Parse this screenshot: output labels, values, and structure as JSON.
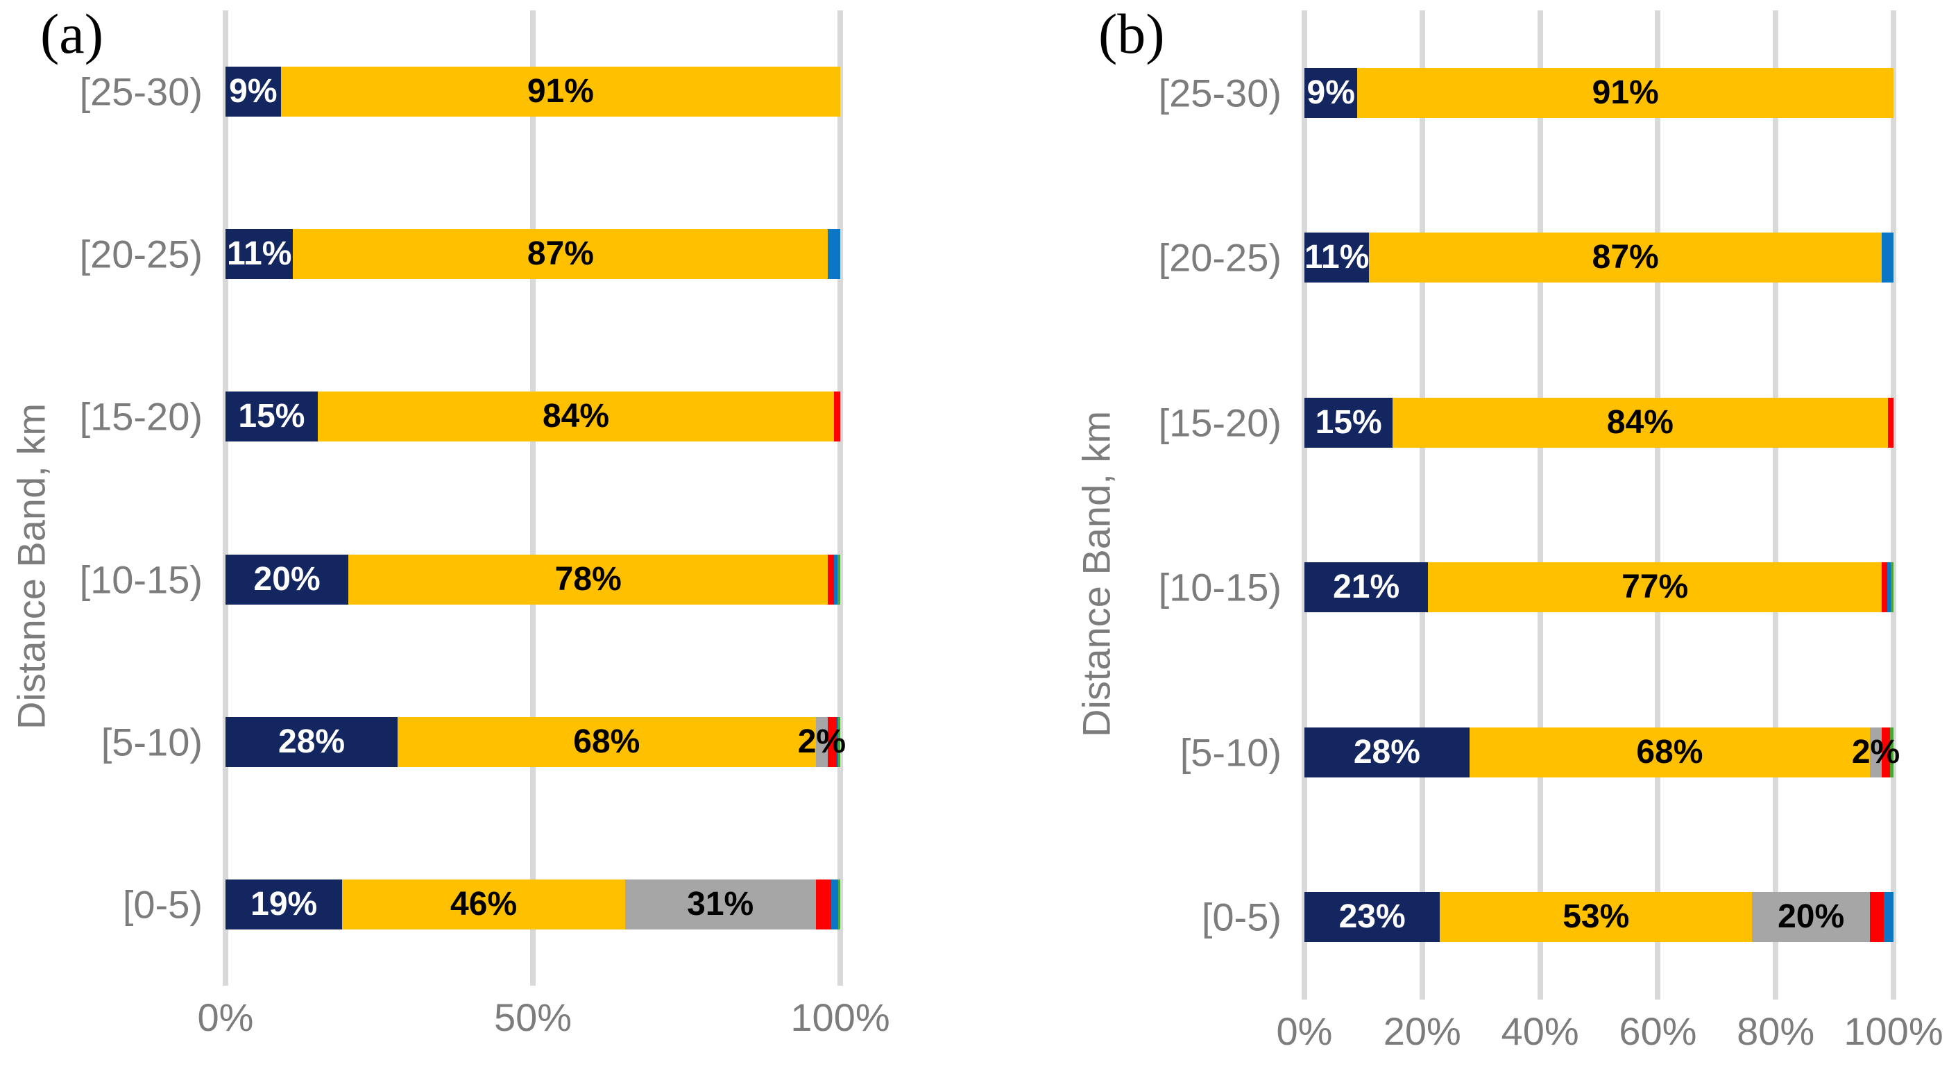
{
  "colors": {
    "background": "#FFFFFF",
    "gridline": "#D9D9D9",
    "axis_text": "#7C7C7C",
    "label_on_dark_segment": "#FFFFFF",
    "label_on_light_segment": "#000000"
  },
  "chart_data": [
    {
      "type": "bar",
      "orientation": "horizontal",
      "stacked": true,
      "title": "(a)",
      "ylabel": "Distance Band, km",
      "xlabel": "",
      "xlim": [
        0,
        100
      ],
      "grid": true,
      "legend": "none",
      "categories": [
        "[25-30)",
        "[20-25)",
        "[15-20)",
        "[10-15)",
        "[5-10)",
        "[0-5)"
      ],
      "x_ticks": [
        {
          "label": "0%",
          "value": 0
        },
        {
          "label": "50%",
          "value": 50
        },
        {
          "label": "100%",
          "value": 100
        }
      ],
      "series": [
        {
          "name": "navy",
          "color": "#13265F",
          "values": [
            9,
            11,
            15,
            20,
            28,
            19
          ],
          "labels": [
            "9%",
            "11%",
            "15%",
            "20%",
            "28%",
            "19%"
          ]
        },
        {
          "name": "gold",
          "color": "#FFC000",
          "values": [
            91,
            87,
            84,
            78,
            68,
            46
          ],
          "labels": [
            "91%",
            "87%",
            "84%",
            "78%",
            "68%",
            "46%"
          ]
        },
        {
          "name": "gray",
          "color": "#A6A6A6",
          "values": [
            0,
            0,
            0,
            0,
            2,
            31
          ],
          "labels": [
            "",
            "",
            "",
            "",
            "2%",
            "31%"
          ]
        },
        {
          "name": "red",
          "color": "#FE0000",
          "values": [
            0,
            0,
            1,
            1,
            1.4,
            2.5
          ]
        },
        {
          "name": "blue",
          "color": "#0B76C6",
          "values": [
            0,
            2,
            0,
            0.5,
            0.3,
            1.2
          ]
        },
        {
          "name": "green",
          "color": "#4BA438",
          "values": [
            0,
            0,
            0,
            0.5,
            0.3,
            0.3
          ]
        }
      ]
    },
    {
      "type": "bar",
      "orientation": "horizontal",
      "stacked": true,
      "title": "(b)",
      "ylabel": "Distance Band, km",
      "xlabel": "",
      "xlim": [
        0,
        100
      ],
      "grid": true,
      "legend": "none",
      "categories": [
        "[25-30)",
        "[20-25)",
        "[15-20)",
        "[10-15)",
        "[5-10)",
        "[0-5)"
      ],
      "x_ticks": [
        {
          "label": "0%",
          "value": 0
        },
        {
          "label": "20%",
          "value": 20
        },
        {
          "label": "40%",
          "value": 40
        },
        {
          "label": "60%",
          "value": 60
        },
        {
          "label": "80%",
          "value": 80
        },
        {
          "label": "100%",
          "value": 100
        }
      ],
      "series": [
        {
          "name": "navy",
          "color": "#13265F",
          "values": [
            9,
            11,
            15,
            21,
            28,
            23
          ],
          "labels": [
            "9%",
            "11%",
            "15%",
            "21%",
            "28%",
            "23%"
          ]
        },
        {
          "name": "gold",
          "color": "#FFC000",
          "values": [
            91,
            87,
            84,
            77,
            68,
            53
          ],
          "labels": [
            "91%",
            "87%",
            "84%",
            "77%",
            "68%",
            "53%"
          ]
        },
        {
          "name": "gray",
          "color": "#A6A6A6",
          "values": [
            0,
            0,
            0,
            0,
            2,
            20
          ],
          "labels": [
            "",
            "",
            "",
            "",
            "2%",
            "20%"
          ]
        },
        {
          "name": "red",
          "color": "#FE0000",
          "values": [
            0,
            0,
            1,
            1,
            1.4,
            2.4
          ]
        },
        {
          "name": "blue",
          "color": "#0B76C6",
          "values": [
            0,
            2,
            0,
            0.5,
            0,
            1.6
          ]
        },
        {
          "name": "green",
          "color": "#4BA438",
          "values": [
            0,
            0,
            0,
            0.5,
            0.6,
            0
          ]
        }
      ]
    }
  ]
}
